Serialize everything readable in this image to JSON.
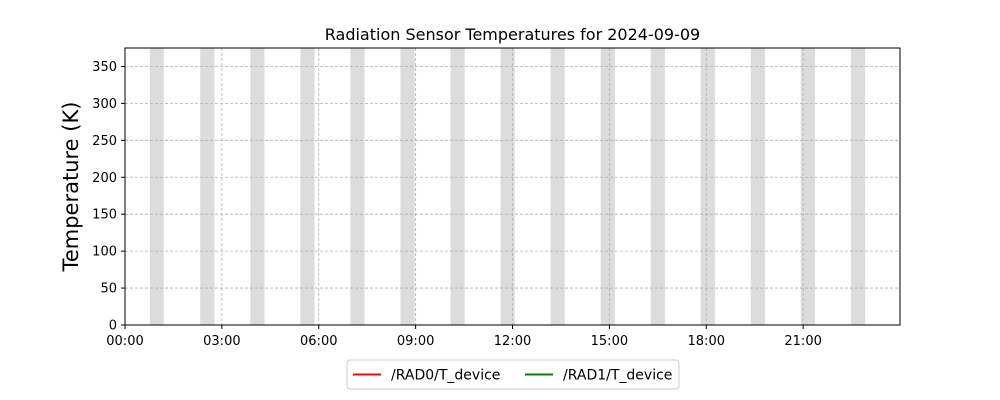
{
  "chart_data": {
    "type": "line",
    "title": "Radiation Sensor Temperatures for 2024-09-09",
    "xlabel": "",
    "ylabel": "Temperature (K)",
    "x_range": [
      "00:00",
      "24:00"
    ],
    "xticks": [
      "00:00",
      "03:00",
      "06:00",
      "09:00",
      "12:00",
      "15:00",
      "18:00",
      "21:00"
    ],
    "xtick_hours": [
      0,
      3,
      6,
      9,
      12,
      15,
      18,
      21
    ],
    "ylim": [
      0,
      375
    ],
    "yticks": [
      0,
      50,
      100,
      150,
      200,
      250,
      300,
      350
    ],
    "grid": true,
    "legend_placement": "bottom-center",
    "shaded_intervals_hours": [
      [
        0.77,
        1.2
      ],
      [
        2.33,
        2.77
      ],
      [
        3.88,
        4.32
      ],
      [
        5.43,
        5.87
      ],
      [
        6.98,
        7.42
      ],
      [
        8.53,
        8.97
      ],
      [
        10.08,
        10.52
      ],
      [
        11.63,
        12.07
      ],
      [
        13.18,
        13.62
      ],
      [
        14.73,
        15.17
      ],
      [
        16.28,
        16.72
      ],
      [
        17.83,
        18.27
      ],
      [
        19.38,
        19.82
      ],
      [
        20.93,
        21.37
      ],
      [
        22.48,
        22.92
      ]
    ],
    "series": [
      {
        "name": "/RAD0/T_device",
        "color": "#ff0000",
        "values": []
      },
      {
        "name": "/RAD1/T_device",
        "color": "#008000",
        "values": []
      }
    ]
  }
}
